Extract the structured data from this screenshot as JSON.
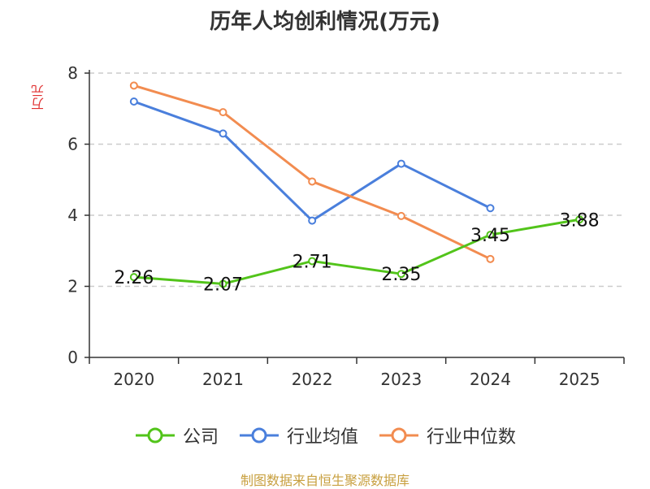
{
  "chart_data": {
    "type": "line",
    "title": "历年人均创利情况(万元)",
    "xlabel": "",
    "ylabel": "万元",
    "categories": [
      "2020",
      "2021",
      "2022",
      "2023",
      "2024",
      "2025"
    ],
    "ylim": [
      0,
      8
    ],
    "yticks": [
      0,
      2,
      4,
      6,
      8
    ],
    "series": [
      {
        "name": "公司",
        "color": "#52c41a",
        "values": [
          2.26,
          2.07,
          2.71,
          2.35,
          3.45,
          3.88
        ],
        "labels": [
          "2.26",
          "2.07",
          "2.71",
          "2.35",
          "3.45",
          "3.88"
        ]
      },
      {
        "name": "行业均值",
        "color": "#4a7fdc",
        "values": [
          7.2,
          6.3,
          3.85,
          5.45,
          4.2,
          null
        ]
      },
      {
        "name": "行业中位数",
        "color": "#f28c50",
        "values": [
          7.65,
          6.9,
          4.95,
          3.98,
          2.77,
          null
        ]
      }
    ],
    "grid": true,
    "legend": "bottom"
  },
  "source": "制图数据来自恒生聚源数据库"
}
